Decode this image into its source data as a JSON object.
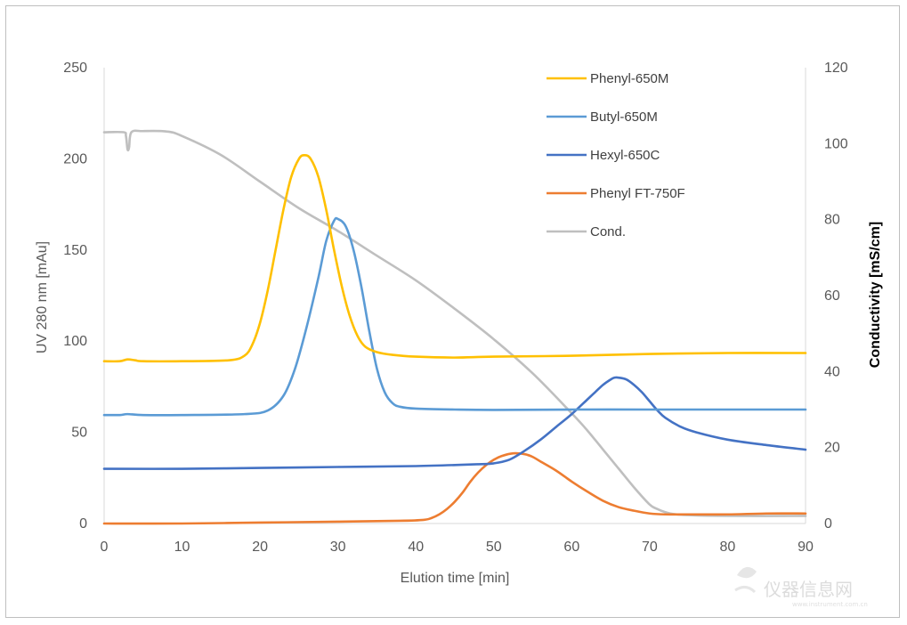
{
  "chart_data": {
    "type": "line",
    "title": "",
    "xlabel": "Elution time [min]",
    "ylabel": "UV 280 nm  [mAu]",
    "y2label": "Conductivity  [mS/cm]",
    "xlim": [
      0,
      90
    ],
    "ylim": [
      0,
      250
    ],
    "y2lim": [
      0,
      120
    ],
    "x_ticks": [
      "0",
      "10",
      "20",
      "30",
      "40",
      "50",
      "60",
      "70",
      "80",
      "90"
    ],
    "y_ticks": [
      "0",
      "50",
      "100",
      "150",
      "200",
      "250"
    ],
    "y2_ticks": [
      "0",
      "20",
      "40",
      "60",
      "80",
      "100",
      "120"
    ],
    "legend_position": "top-right",
    "series": [
      {
        "name": "Phenyl-650M",
        "axis": "left",
        "color": "#FFC000",
        "points": [
          [
            0,
            89
          ],
          [
            2,
            89
          ],
          [
            3,
            90
          ],
          [
            4,
            89.5
          ],
          [
            5,
            89
          ],
          [
            10,
            89
          ],
          [
            16,
            89.5
          ],
          [
            18,
            92
          ],
          [
            19,
            98
          ],
          [
            20,
            110
          ],
          [
            21,
            128
          ],
          [
            22,
            150
          ],
          [
            23,
            172
          ],
          [
            24,
            190
          ],
          [
            25,
            200
          ],
          [
            25.7,
            202
          ],
          [
            26.5,
            200
          ],
          [
            27.5,
            190
          ],
          [
            28.5,
            172
          ],
          [
            29.5,
            150
          ],
          [
            30.5,
            130
          ],
          [
            31.5,
            114
          ],
          [
            32.5,
            103
          ],
          [
            33.5,
            97
          ],
          [
            35,
            94
          ],
          [
            37,
            92.5
          ],
          [
            40,
            91.5
          ],
          [
            45,
            91
          ],
          [
            50,
            91.5
          ],
          [
            60,
            92
          ],
          [
            70,
            93
          ],
          [
            80,
            93.5
          ],
          [
            90,
            93.5
          ]
        ]
      },
      {
        "name": "Butyl-650M",
        "axis": "left",
        "color": "#5B9BD5",
        "points": [
          [
            0,
            59.5
          ],
          [
            2,
            59.5
          ],
          [
            3,
            60
          ],
          [
            5,
            59.5
          ],
          [
            10,
            59.5
          ],
          [
            18,
            60
          ],
          [
            21,
            62
          ],
          [
            23,
            70
          ],
          [
            24.5,
            85
          ],
          [
            26,
            108
          ],
          [
            27.5,
            135
          ],
          [
            28.5,
            155
          ],
          [
            29.5,
            166
          ],
          [
            30,
            167
          ],
          [
            31,
            163
          ],
          [
            32,
            150
          ],
          [
            33,
            130
          ],
          [
            34,
            106
          ],
          [
            35,
            85
          ],
          [
            36,
            72
          ],
          [
            37,
            66
          ],
          [
            38,
            64
          ],
          [
            40,
            63
          ],
          [
            45,
            62.5
          ],
          [
            50,
            62.3
          ],
          [
            60,
            62.5
          ],
          [
            70,
            62.5
          ],
          [
            80,
            62.5
          ],
          [
            90,
            62.5
          ]
        ]
      },
      {
        "name": "Hexyl-650C",
        "axis": "left",
        "color": "#4472C4",
        "points": [
          [
            0,
            30
          ],
          [
            10,
            30
          ],
          [
            20,
            30.5
          ],
          [
            30,
            31
          ],
          [
            40,
            31.5
          ],
          [
            48,
            32.5
          ],
          [
            50,
            33
          ],
          [
            52,
            35
          ],
          [
            54,
            40
          ],
          [
            56,
            46
          ],
          [
            58,
            53
          ],
          [
            60,
            60
          ],
          [
            62,
            68
          ],
          [
            63,
            72
          ],
          [
            64,
            76
          ],
          [
            65,
            79
          ],
          [
            65.5,
            80
          ],
          [
            66,
            80
          ],
          [
            67,
            79
          ],
          [
            68,
            76
          ],
          [
            69,
            72
          ],
          [
            70,
            67
          ],
          [
            71,
            62
          ],
          [
            72,
            58
          ],
          [
            74,
            53
          ],
          [
            76,
            50
          ],
          [
            80,
            46
          ],
          [
            85,
            43
          ],
          [
            90,
            40.5
          ]
        ]
      },
      {
        "name": "Phenyl FT-750F",
        "axis": "left",
        "color": "#ED7D31",
        "points": [
          [
            0,
            0
          ],
          [
            10,
            0
          ],
          [
            20,
            0.5
          ],
          [
            30,
            1
          ],
          [
            38,
            1.5
          ],
          [
            41,
            2
          ],
          [
            42,
            3
          ],
          [
            43,
            5
          ],
          [
            44,
            8
          ],
          [
            45,
            12
          ],
          [
            46,
            17
          ],
          [
            47,
            23
          ],
          [
            48,
            28
          ],
          [
            49,
            32
          ],
          [
            50,
            35
          ],
          [
            51,
            37
          ],
          [
            52.5,
            38.5
          ],
          [
            54,
            38
          ],
          [
            55,
            36.5
          ],
          [
            56,
            34
          ],
          [
            58,
            29
          ],
          [
            60,
            23
          ],
          [
            62,
            17.5
          ],
          [
            64,
            12.5
          ],
          [
            66,
            9
          ],
          [
            68,
            7
          ],
          [
            70,
            5.5
          ],
          [
            72,
            5
          ],
          [
            75,
            5
          ],
          [
            80,
            5
          ],
          [
            85,
            5.5
          ],
          [
            90,
            5.5
          ]
        ]
      },
      {
        "name": "Cond.",
        "axis": "right",
        "color": "#BFBFBF",
        "points": [
          [
            0,
            103
          ],
          [
            2.5,
            103
          ],
          [
            2.8,
            102
          ],
          [
            3,
            98.5
          ],
          [
            3.2,
            99
          ],
          [
            3.5,
            103
          ],
          [
            5,
            103.3
          ],
          [
            8,
            103.2
          ],
          [
            10,
            102
          ],
          [
            15,
            97
          ],
          [
            20,
            90
          ],
          [
            25,
            83
          ],
          [
            30,
            77
          ],
          [
            35,
            70.5
          ],
          [
            40,
            64
          ],
          [
            45,
            56.5
          ],
          [
            50,
            48.5
          ],
          [
            55,
            39.5
          ],
          [
            60,
            29
          ],
          [
            62,
            24.5
          ],
          [
            64,
            19.5
          ],
          [
            66,
            14.5
          ],
          [
            68,
            9.5
          ],
          [
            70,
            5
          ],
          [
            71,
            3.8
          ],
          [
            72,
            3
          ],
          [
            73,
            2.5
          ],
          [
            75,
            2.2
          ],
          [
            80,
            2
          ],
          [
            90,
            2
          ]
        ]
      }
    ]
  },
  "watermark": {
    "main": "仪器信息网",
    "sub": "www.instrument.com.cn"
  }
}
